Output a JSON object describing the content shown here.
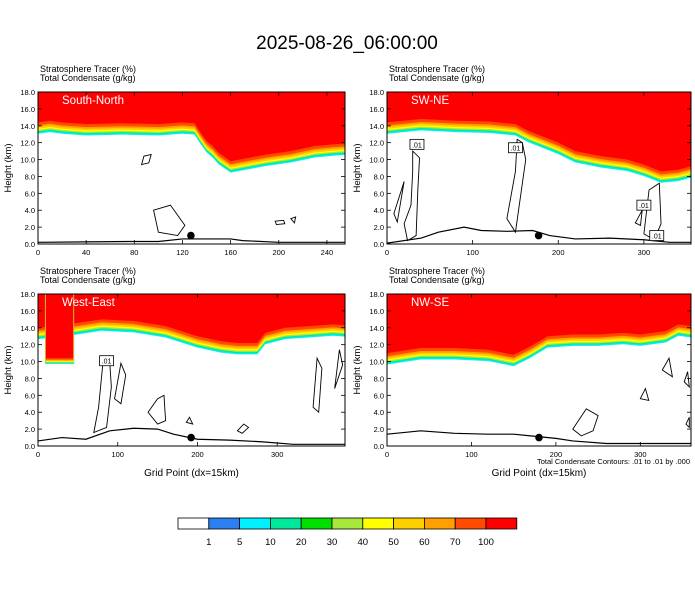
{
  "title": "2025-08-26_06:00:00",
  "footnote": "Total Condensate Contours: .01 to .01 by .000",
  "colorbar": {
    "labels": [
      "1",
      "5",
      "10",
      "20",
      "30",
      "40",
      "50",
      "60",
      "70",
      "100"
    ],
    "colors": [
      "#ffffff",
      "#2b7ff0",
      "#00f0ff",
      "#00e89a",
      "#00e000",
      "#a8e83c",
      "#ffff00",
      "#ffd000",
      "#ffa000",
      "#ff4a00",
      "#ff0000"
    ]
  },
  "chart_data": [
    {
      "type": "heatmap",
      "name": "South-North",
      "subtitle_1": "Stratosphere Tracer   (%)",
      "subtitle_2": "Total Condensate   (g/kg)",
      "ylabel": "Height (km)",
      "xlabel": "",
      "xlim": [
        0,
        255
      ],
      "ylim": [
        0,
        18
      ],
      "xticks": [
        "0",
        "40",
        "80",
        "120",
        "160",
        "200",
        "240"
      ],
      "yticks": [
        "0.0",
        "2.0",
        "4.0",
        "6.0",
        "8.0",
        "10.0",
        "12.0",
        "14.0",
        "16.0",
        "18.0"
      ],
      "tracer_base_km": [
        [
          0,
          14.4
        ],
        [
          10,
          14.6
        ],
        [
          20,
          14.4
        ],
        [
          40,
          14.2
        ],
        [
          70,
          14.3
        ],
        [
          100,
          14.2
        ],
        [
          120,
          14.4
        ],
        [
          130,
          14.3
        ],
        [
          135,
          13.2
        ],
        [
          140,
          12.2
        ],
        [
          145,
          11.6
        ],
        [
          150,
          10.8
        ],
        [
          160,
          9.8
        ],
        [
          175,
          10.2
        ],
        [
          190,
          10.6
        ],
        [
          210,
          11.0
        ],
        [
          230,
          11.6
        ],
        [
          245,
          11.8
        ],
        [
          255,
          11.9
        ]
      ],
      "terrain_km": [
        [
          0,
          0.2
        ],
        [
          40,
          0.25
        ],
        [
          80,
          0.3
        ],
        [
          100,
          0.3
        ],
        [
          120,
          0.6
        ],
        [
          160,
          0.6
        ],
        [
          170,
          0.4
        ],
        [
          200,
          0.2
        ],
        [
          255,
          0.2
        ]
      ],
      "point_km": [
        127,
        1.0
      ],
      "contour_labels": []
    },
    {
      "type": "heatmap",
      "name": "SW-NE",
      "subtitle_1": "Stratosphere Tracer   (%)",
      "subtitle_2": "Total Condensate   (g/kg)",
      "ylabel": "Height (km)",
      "xlabel": "",
      "xlim": [
        0,
        355
      ],
      "ylim": [
        0,
        18
      ],
      "xticks": [
        "0",
        "100",
        "200",
        "300"
      ],
      "yticks": [
        "0.0",
        "2.0",
        "4.0",
        "6.0",
        "8.0",
        "10.0",
        "12.0",
        "14.0",
        "16.0",
        "18.0"
      ],
      "tracer_base_km": [
        [
          0,
          14.4
        ],
        [
          40,
          14.8
        ],
        [
          80,
          14.6
        ],
        [
          120,
          14.5
        ],
        [
          150,
          14.2
        ],
        [
          165,
          13.4
        ],
        [
          180,
          12.8
        ],
        [
          200,
          12.0
        ],
        [
          220,
          11.0
        ],
        [
          250,
          10.4
        ],
        [
          280,
          10.0
        ],
        [
          300,
          9.4
        ],
        [
          320,
          8.6
        ],
        [
          340,
          8.8
        ],
        [
          355,
          9.2
        ]
      ],
      "terrain_km": [
        [
          0,
          0.1
        ],
        [
          40,
          0.7
        ],
        [
          60,
          1.4
        ],
        [
          90,
          2.0
        ],
        [
          110,
          1.6
        ],
        [
          140,
          1.5
        ],
        [
          170,
          1.6
        ],
        [
          190,
          1.0
        ],
        [
          220,
          0.6
        ],
        [
          260,
          0.7
        ],
        [
          300,
          0.5
        ],
        [
          330,
          0.2
        ],
        [
          355,
          0.2
        ]
      ],
      "point_km": [
        177,
        1.0
      ],
      "contour_labels": [
        ".01",
        ".01",
        ".01",
        ".01"
      ]
    },
    {
      "type": "heatmap",
      "name": "West-East",
      "subtitle_1": "Stratosphere Tracer   (%)",
      "subtitle_2": "Total Condensate   (g/kg)",
      "ylabel": "Height (km)",
      "xlabel": "Grid Point (dx=15km)",
      "xlim": [
        0,
        385
      ],
      "ylim": [
        0,
        18
      ],
      "xticks": [
        "0",
        "100",
        "200",
        "300"
      ],
      "yticks": [
        "0.0",
        "2.0",
        "4.0",
        "6.0",
        "8.0",
        "10.0",
        "12.0",
        "14.0",
        "16.0",
        "18.0"
      ],
      "tracer_base_km": [
        [
          0,
          14.0
        ],
        [
          45,
          14.5
        ],
        [
          80,
          15.0
        ],
        [
          120,
          14.8
        ],
        [
          160,
          14.2
        ],
        [
          200,
          13.0
        ],
        [
          230,
          12.4
        ],
        [
          250,
          12.2
        ],
        [
          275,
          12.2
        ],
        [
          285,
          13.4
        ],
        [
          310,
          14.0
        ],
        [
          340,
          14.2
        ],
        [
          370,
          14.4
        ],
        [
          385,
          14.3
        ]
      ],
      "intrusion_km": {
        "x0": 10,
        "x1": 44,
        "base": 10.4
      },
      "terrain_km": [
        [
          0,
          0.6
        ],
        [
          30,
          1.0
        ],
        [
          60,
          0.8
        ],
        [
          90,
          1.8
        ],
        [
          120,
          2.1
        ],
        [
          150,
          2.0
        ],
        [
          170,
          1.4
        ],
        [
          200,
          0.8
        ],
        [
          240,
          0.7
        ],
        [
          280,
          0.5
        ],
        [
          320,
          0.2
        ],
        [
          385,
          0.2
        ]
      ],
      "point_km": [
        192,
        1.0
      ],
      "contour_labels": [
        ".01"
      ]
    },
    {
      "type": "heatmap",
      "name": "NW-SE",
      "subtitle_1": "Stratosphere Tracer   (%)",
      "subtitle_2": "Total Condensate   (g/kg)",
      "ylabel": "Height (km)",
      "xlabel": "Grid Point (dx=15km)",
      "xlim": [
        0,
        360
      ],
      "ylim": [
        0,
        18
      ],
      "xticks": [
        "0",
        "100",
        "200",
        "300"
      ],
      "yticks": [
        "0.0",
        "2.0",
        "4.0",
        "6.0",
        "8.0",
        "10.0",
        "12.0",
        "14.0",
        "16.0",
        "18.0"
      ],
      "tracer_base_km": [
        [
          0,
          11.0
        ],
        [
          40,
          11.6
        ],
        [
          80,
          11.6
        ],
        [
          120,
          11.4
        ],
        [
          150,
          10.8
        ],
        [
          170,
          11.8
        ],
        [
          190,
          13.0
        ],
        [
          220,
          13.2
        ],
        [
          250,
          13.2
        ],
        [
          280,
          13.4
        ],
        [
          300,
          13.2
        ],
        [
          330,
          13.6
        ],
        [
          345,
          14.4
        ],
        [
          360,
          14.2
        ]
      ],
      "terrain_km": [
        [
          0,
          1.4
        ],
        [
          40,
          1.8
        ],
        [
          80,
          1.5
        ],
        [
          120,
          1.4
        ],
        [
          150,
          1.4
        ],
        [
          170,
          1.2
        ],
        [
          200,
          0.9
        ],
        [
          220,
          0.6
        ],
        [
          260,
          0.3
        ],
        [
          360,
          0.3
        ]
      ],
      "point_km": [
        180,
        1.0
      ],
      "contour_labels": []
    }
  ]
}
